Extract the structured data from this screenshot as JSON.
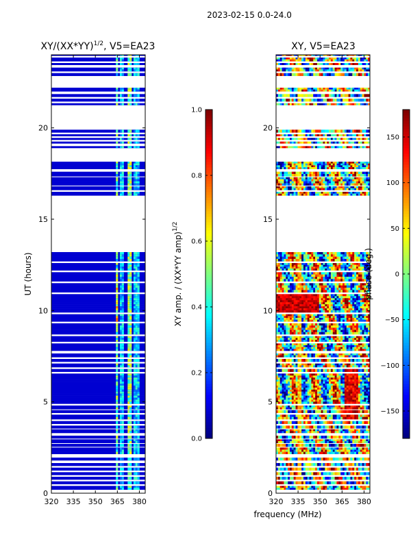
{
  "figure": {
    "suptitle": "2023-02-15 0.0-24.0"
  },
  "chart_data": [
    {
      "type": "heatmap",
      "title": "XY/(XX*YY)^1/2, V5=EA23",
      "title_main": "XY/(XX*YY)",
      "title_exp": "1/2",
      "title_tail": ", V5=EA23",
      "xlabel": "",
      "ylabel": "UT (hours)",
      "xlim": [
        320,
        384
      ],
      "ylim": [
        0,
        24
      ],
      "xticks": [
        320,
        335,
        350,
        365,
        380
      ],
      "yticks": [
        0,
        5,
        10,
        15,
        20
      ],
      "colorbar": {
        "label_main": "XY amp. / (XX*YY amp)",
        "label_exp": "1/2",
        "range": [
          0.0,
          1.0
        ],
        "ticks": [
          "0.0",
          "0.2",
          "0.4",
          "0.6",
          "0.8",
          "1.0"
        ],
        "tick_values": [
          0.0,
          0.2,
          0.4,
          0.6,
          0.8,
          1.0
        ]
      }
    },
    {
      "type": "heatmap",
      "title": "XY, V5=EA23",
      "xlabel": "frequency (MHz)",
      "ylabel": "",
      "xlim": [
        320,
        384
      ],
      "ylim": [
        0,
        24
      ],
      "xticks": [
        320,
        335,
        350,
        365,
        380
      ],
      "yticks": [
        0,
        5,
        10,
        15,
        20
      ],
      "colorbar": {
        "label": "phase (deg.)",
        "range": [
          -180,
          180
        ],
        "ticks": [
          "150",
          "100",
          "50",
          "0",
          "−50",
          "−100",
          "−150"
        ],
        "tick_values": [
          150,
          100,
          50,
          0,
          -50,
          -100,
          -150
        ]
      }
    }
  ],
  "data_coverage_hours": [
    [
      0.2,
      0.4
    ],
    [
      0.5,
      0.65
    ],
    [
      0.75,
      0.9
    ],
    [
      1.0,
      1.15
    ],
    [
      1.25,
      1.4
    ],
    [
      1.5,
      1.65
    ],
    [
      1.8,
      1.95
    ],
    [
      2.15,
      2.5
    ],
    [
      2.55,
      2.7
    ],
    [
      2.75,
      2.95
    ],
    [
      3.0,
      3.15
    ],
    [
      3.3,
      3.5
    ],
    [
      3.55,
      3.7
    ],
    [
      3.8,
      3.95
    ],
    [
      4.05,
      4.3
    ],
    [
      4.4,
      4.55
    ],
    [
      4.6,
      4.8
    ],
    [
      4.9,
      6.55
    ],
    [
      6.65,
      6.8
    ],
    [
      6.9,
      7.1
    ],
    [
      7.2,
      7.35
    ],
    [
      7.45,
      7.65
    ],
    [
      7.8,
      8.2
    ],
    [
      8.3,
      8.6
    ],
    [
      8.7,
      9.3
    ],
    [
      9.4,
      9.8
    ],
    [
      9.9,
      10.9
    ],
    [
      11.0,
      11.5
    ],
    [
      11.6,
      12.1
    ],
    [
      12.2,
      12.6
    ],
    [
      12.7,
      13.2
    ],
    [
      16.3,
      16.5
    ],
    [
      16.6,
      16.8
    ],
    [
      16.85,
      17.3
    ],
    [
      17.35,
      17.6
    ],
    [
      17.75,
      18.15
    ],
    [
      18.9,
      19.0
    ],
    [
      19.15,
      19.25
    ],
    [
      19.35,
      19.45
    ],
    [
      19.55,
      19.65
    ],
    [
      19.75,
      19.9
    ],
    [
      21.25,
      21.35
    ],
    [
      21.45,
      21.6
    ],
    [
      21.7,
      21.85
    ],
    [
      22.0,
      22.2
    ],
    [
      22.85,
      23.0
    ],
    [
      23.1,
      23.3
    ],
    [
      23.45,
      23.55
    ],
    [
      23.65,
      23.85
    ],
    [
      23.95,
      24.0
    ]
  ]
}
